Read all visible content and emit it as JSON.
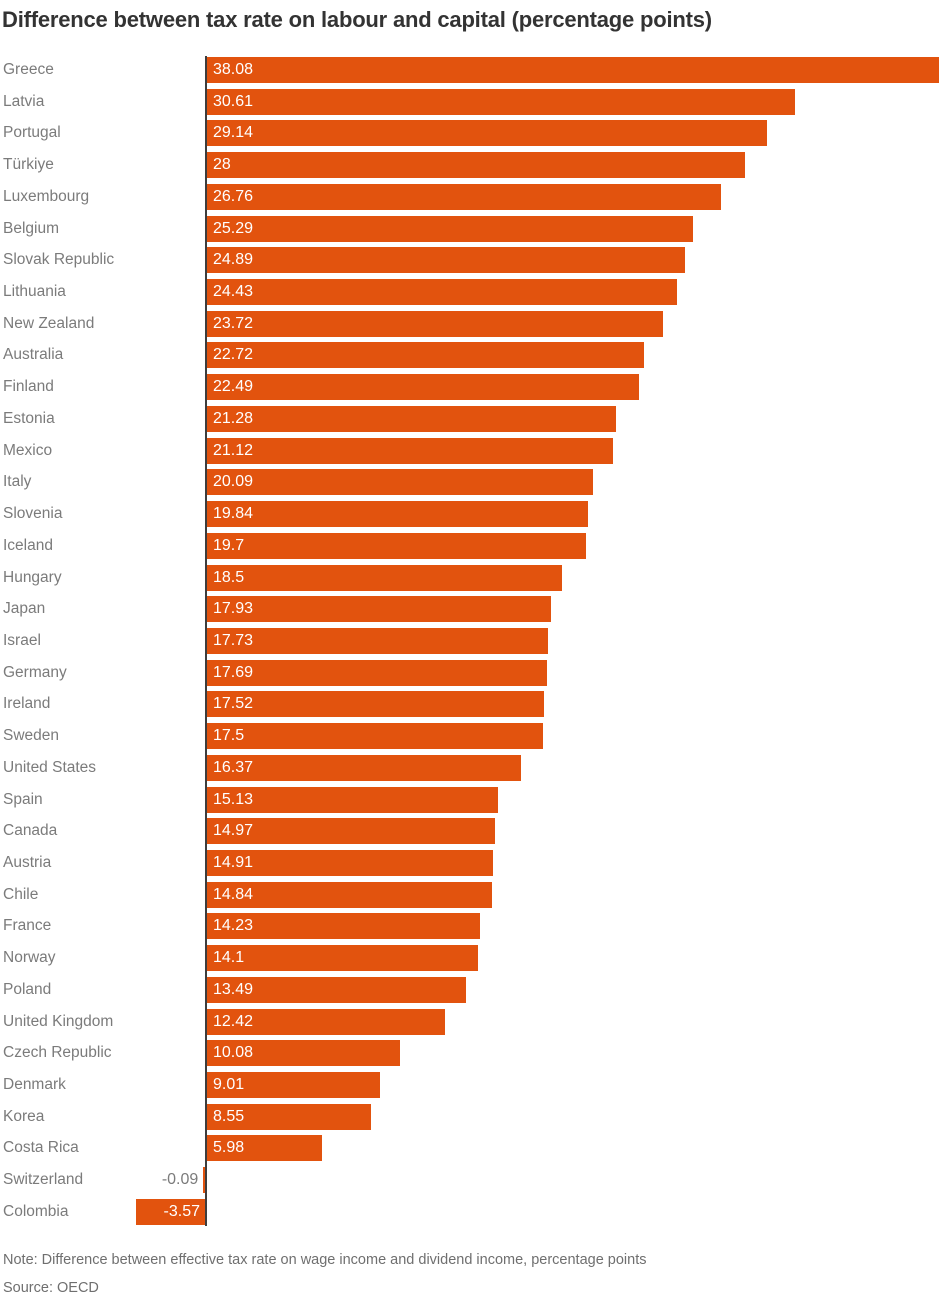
{
  "title": "Difference between tax rate on labour and capital (percentage points)",
  "note": "Note: Difference between effective tax rate on wage income and dividend income, percentage points",
  "source": "Source: OECD",
  "colors": {
    "bar": "#E2530E",
    "title_text": "#333333",
    "country_label": "#7B7B7B",
    "value_label_inside": "#FFFFFF",
    "value_label_outside": "#7B7B7B",
    "zero_axis": "#3D3D3D",
    "background": "#FFFFFF"
  },
  "chart_data": {
    "type": "bar",
    "orientation": "horizontal",
    "title": "Difference between tax rate on labour and capital (percentage points)",
    "xlabel": "",
    "ylabel": "",
    "xlim": [
      -3.57,
      38.08
    ],
    "grid": false,
    "legend": false,
    "note": "Note: Difference between effective tax rate on wage income and dividend income, percentage points",
    "source": "Source: OECD",
    "categories": [
      "Greece",
      "Latvia",
      "Portugal",
      "Türkiye",
      "Luxembourg",
      "Belgium",
      "Slovak Republic",
      "Lithuania",
      "New Zealand",
      "Australia",
      "Finland",
      "Estonia",
      "Mexico",
      "Italy",
      "Slovenia",
      "Iceland",
      "Hungary",
      "Japan",
      "Israel",
      "Germany",
      "Ireland",
      "Sweden",
      "United States",
      "Spain",
      "Canada",
      "Austria",
      "Chile",
      "France",
      "Norway",
      "Poland",
      "United Kingdom",
      "Czech Republic",
      "Denmark",
      "Korea",
      "Costa Rica",
      "Switzerland",
      "Colombia"
    ],
    "values": [
      38.08,
      30.61,
      29.14,
      28,
      26.76,
      25.29,
      24.89,
      24.43,
      23.72,
      22.72,
      22.49,
      21.28,
      21.12,
      20.09,
      19.84,
      19.7,
      18.5,
      17.93,
      17.73,
      17.69,
      17.52,
      17.5,
      16.37,
      15.13,
      14.97,
      14.91,
      14.84,
      14.23,
      14.1,
      13.49,
      12.42,
      10.08,
      9.01,
      8.55,
      5.98,
      -0.09,
      -3.57
    ],
    "value_labels": [
      "38.08",
      "30.61",
      "29.14",
      "28",
      "26.76",
      "25.29",
      "24.89",
      "24.43",
      "23.72",
      "22.72",
      "22.49",
      "21.28",
      "21.12",
      "20.09",
      "19.84",
      "19.7",
      "18.5",
      "17.93",
      "17.73",
      "17.69",
      "17.52",
      "17.5",
      "16.37",
      "15.13",
      "14.97",
      "14.91",
      "14.84",
      "14.23",
      "14.1",
      "13.49",
      "12.42",
      "10.08",
      "9.01",
      "8.55",
      "5.98",
      "-0.09",
      "-3.57"
    ]
  }
}
